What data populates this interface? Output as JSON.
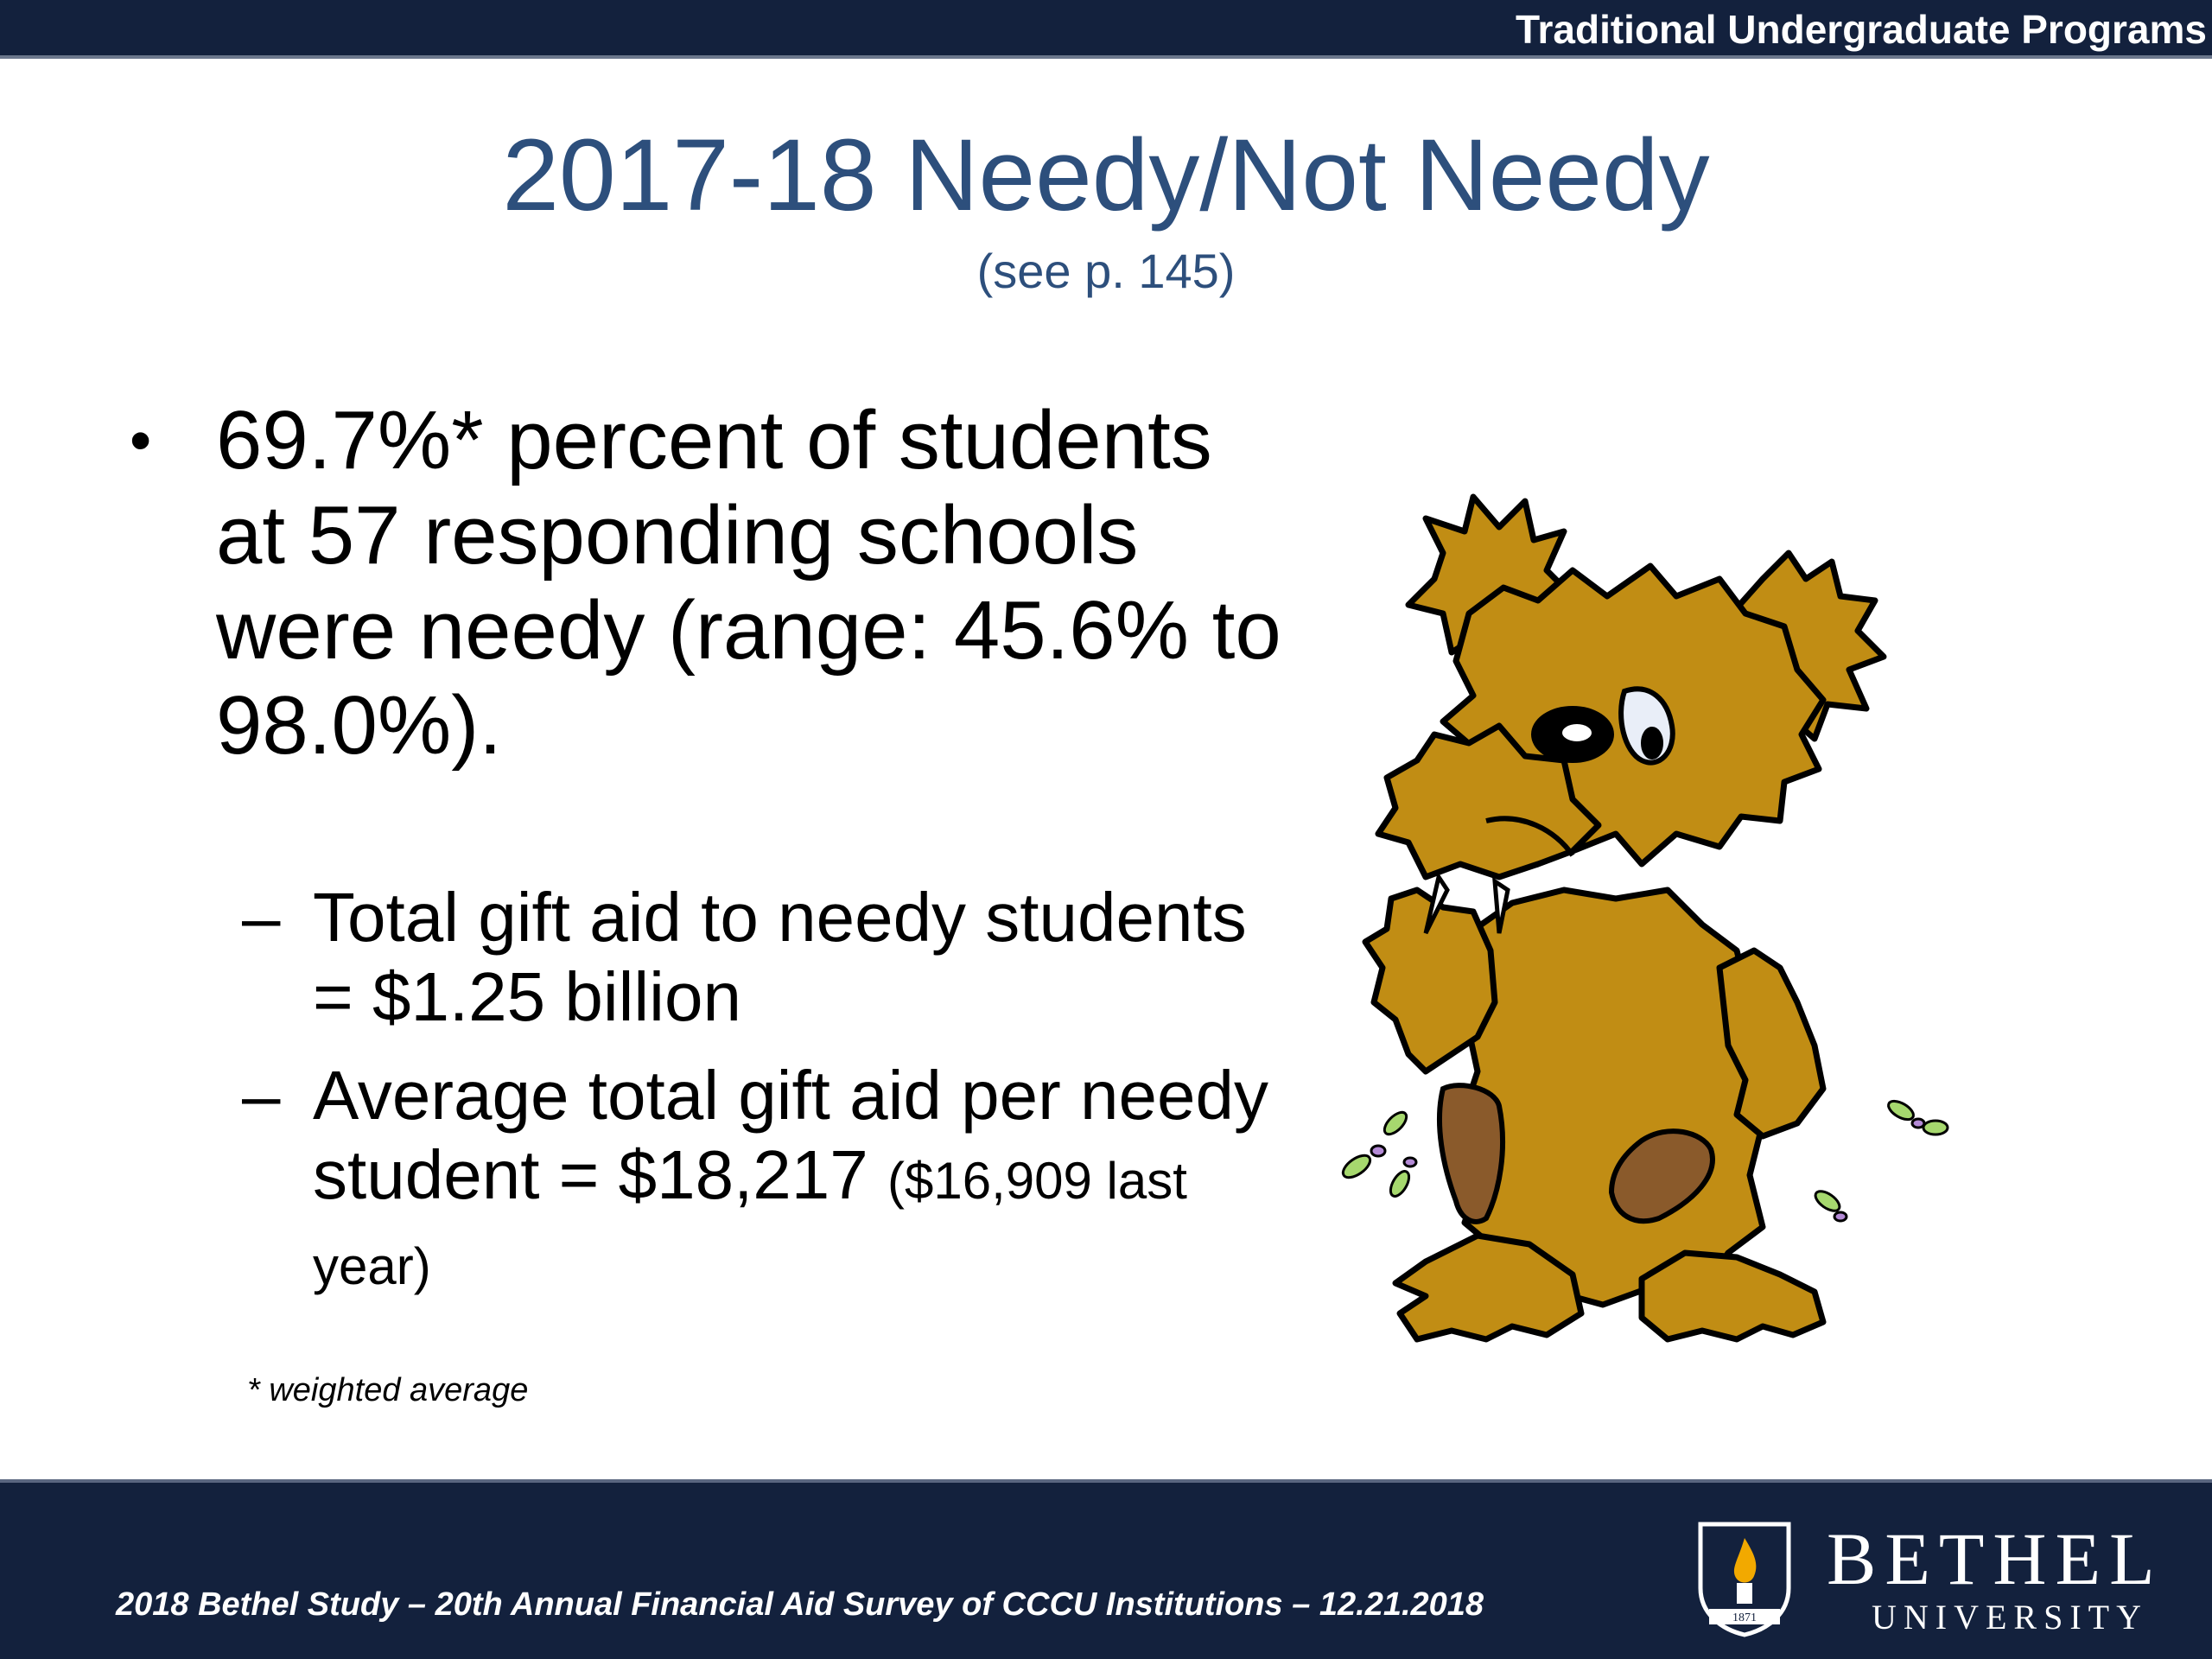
{
  "header": {
    "program_label": "Traditional Undergraduate Programs"
  },
  "slide": {
    "title": "2017-18 Needy/Not Needy",
    "subtitle": "(see p. 145)",
    "bullet": {
      "marker": "•",
      "text": "69.7%* percent of students at 57 responding schools were needy (range: 45.6% to 98.0%)."
    },
    "sub_bullets": [
      {
        "marker": "–",
        "text": "Total gift aid to needy students = $1.25 billion"
      },
      {
        "marker": "–",
        "text": "Average total gift aid per needy student = $18,217",
        "note": "($16,909 last year)"
      }
    ],
    "footnote": "* weighted average"
  },
  "illustration": {
    "icon": "empty-pockets-bear-icon",
    "fur_color": "#c18d14"
  },
  "footer": {
    "citation": "2018 Bethel Study – 20th Annual Financial Aid Survey of CCCU Institutions – 12.21.2018",
    "logo": {
      "name": "BETHEL",
      "sub": "UNIVERSITY",
      "year": "1871",
      "icon": "flame-shield-icon"
    }
  },
  "colors": {
    "navy": "#13213d",
    "title_blue": "#2d4f7c",
    "flame": "#f2a900"
  }
}
